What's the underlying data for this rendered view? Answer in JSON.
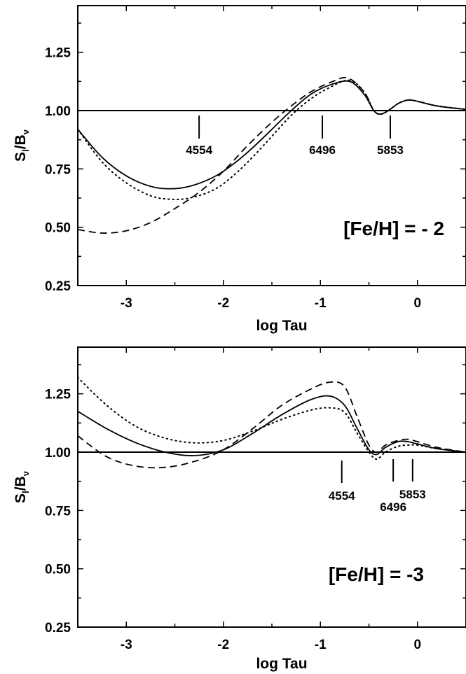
{
  "chart_data": [
    {
      "type": "line",
      "xlabel": "log Tau",
      "ylabel": {
        "main": "S",
        "sub1": "l",
        "mid": "/B",
        "sub2": "ν"
      },
      "xlim": [
        -3.5,
        0.5
      ],
      "ylim": [
        0.25,
        1.45
      ],
      "xticks": [
        -3,
        -2,
        -1,
        0
      ],
      "xtick_labels": [
        "-3",
        "-2",
        "-1",
        "0"
      ],
      "yticks": [
        0.25,
        0.5,
        0.75,
        1.0,
        1.25
      ],
      "ytick_labels": [
        "0.25",
        "0.50",
        "0.75",
        "1.00",
        "1.25"
      ],
      "grid": false,
      "annotation": "[Fe/H] = - 2",
      "reference_line": 1.0,
      "line_markers": [
        {
          "label": "4554",
          "x": -2.25
        },
        {
          "label": "6496",
          "x": -0.98
        },
        {
          "label": "5853",
          "x": -0.28
        }
      ],
      "series": [
        {
          "style": "solid",
          "x": [
            -3.5,
            -3.25,
            -3.0,
            -2.75,
            -2.55,
            -2.35,
            -2.1,
            -1.9,
            -1.7,
            -1.5,
            -1.3,
            -1.1,
            -0.9,
            -0.7,
            -0.55,
            -0.45,
            -0.38,
            -0.3,
            -0.2,
            -0.1,
            0.0,
            0.2,
            0.5
          ],
          "y": [
            0.92,
            0.8,
            0.72,
            0.675,
            0.665,
            0.675,
            0.715,
            0.77,
            0.84,
            0.92,
            1.0,
            1.07,
            1.11,
            1.125,
            1.07,
            1.0,
            0.985,
            1.0,
            1.03,
            1.045,
            1.04,
            1.02,
            1.005
          ]
        },
        {
          "style": "dotted",
          "x": [
            -3.5,
            -3.25,
            -3.0,
            -2.75,
            -2.55,
            -2.35,
            -2.1,
            -1.9,
            -1.7,
            -1.5,
            -1.3,
            -1.1,
            -0.9,
            -0.7,
            -0.55,
            -0.45,
            -0.38,
            -0.3,
            -0.2,
            -0.1,
            0.0,
            0.2,
            0.5
          ],
          "y": [
            0.92,
            0.78,
            0.69,
            0.635,
            0.62,
            0.625,
            0.66,
            0.72,
            0.8,
            0.89,
            0.98,
            1.05,
            1.1,
            1.13,
            1.08,
            1.0,
            0.985,
            1.0,
            1.03,
            1.045,
            1.04,
            1.02,
            1.005
          ]
        },
        {
          "style": "dashed",
          "x": [
            -3.5,
            -3.25,
            -3.0,
            -2.75,
            -2.5,
            -2.25,
            -2.0,
            -1.75,
            -1.5,
            -1.3,
            -1.1,
            -0.9,
            -0.72,
            -0.55,
            -0.45,
            -0.38,
            -0.3,
            -0.2,
            -0.1,
            0.0,
            0.2,
            0.5
          ],
          "y": [
            0.49,
            0.475,
            0.485,
            0.52,
            0.58,
            0.65,
            0.74,
            0.85,
            0.95,
            1.02,
            1.08,
            1.12,
            1.14,
            1.08,
            1.0,
            0.985,
            1.0,
            1.03,
            1.045,
            1.04,
            1.02,
            1.005
          ]
        }
      ]
    },
    {
      "type": "line",
      "xlabel": "log Tau",
      "ylabel": {
        "main": "S",
        "sub1": "l",
        "mid": "/B",
        "sub2": "ν"
      },
      "xlim": [
        -3.5,
        0.5
      ],
      "ylim": [
        0.25,
        1.45
      ],
      "xticks": [
        -3,
        -2,
        -1,
        0
      ],
      "xtick_labels": [
        "-3",
        "-2",
        "-1",
        "0"
      ],
      "yticks": [
        0.25,
        0.5,
        0.75,
        1.0,
        1.25
      ],
      "ytick_labels": [
        "0.25",
        "0.50",
        "0.75",
        "1.00",
        "1.25"
      ],
      "grid": false,
      "annotation": "[Fe/H] = -3",
      "reference_line": 1.0,
      "line_markers": [
        {
          "label": "4554",
          "x": -0.78
        },
        {
          "label": "6496",
          "x": -0.25
        },
        {
          "label": "5853",
          "x": -0.05
        }
      ],
      "series": [
        {
          "style": "solid",
          "x": [
            -3.5,
            -3.2,
            -2.9,
            -2.6,
            -2.3,
            -2.0,
            -1.7,
            -1.4,
            -1.1,
            -0.9,
            -0.75,
            -0.62,
            -0.5,
            -0.42,
            -0.33,
            -0.2,
            -0.1,
            0.0,
            0.2,
            0.5
          ],
          "y": [
            1.175,
            1.1,
            1.04,
            1.0,
            0.985,
            1.01,
            1.08,
            1.16,
            1.225,
            1.24,
            1.2,
            1.1,
            1.01,
            0.99,
            1.02,
            1.045,
            1.045,
            1.035,
            1.015,
            1.0
          ]
        },
        {
          "style": "dotted",
          "x": [
            -3.5,
            -3.2,
            -2.9,
            -2.6,
            -2.3,
            -2.0,
            -1.7,
            -1.4,
            -1.1,
            -0.9,
            -0.75,
            -0.62,
            -0.5,
            -0.42,
            -0.33,
            -0.2,
            -0.1,
            0.0,
            0.2,
            0.5
          ],
          "y": [
            1.32,
            1.2,
            1.11,
            1.06,
            1.04,
            1.05,
            1.09,
            1.14,
            1.18,
            1.19,
            1.17,
            1.08,
            1.0,
            0.97,
            1.0,
            1.025,
            1.03,
            1.03,
            1.015,
            1.0
          ]
        },
        {
          "style": "dashed",
          "x": [
            -3.5,
            -3.2,
            -2.9,
            -2.6,
            -2.3,
            -2.0,
            -1.7,
            -1.4,
            -1.1,
            -0.9,
            -0.75,
            -0.62,
            -0.5,
            -0.42,
            -0.33,
            -0.2,
            -0.1,
            0.0,
            0.2,
            0.5
          ],
          "y": [
            1.07,
            0.98,
            0.94,
            0.935,
            0.96,
            1.01,
            1.1,
            1.2,
            1.27,
            1.3,
            1.28,
            1.15,
            1.03,
            1.0,
            1.03,
            1.05,
            1.055,
            1.045,
            1.02,
            1.0
          ]
        }
      ]
    }
  ]
}
